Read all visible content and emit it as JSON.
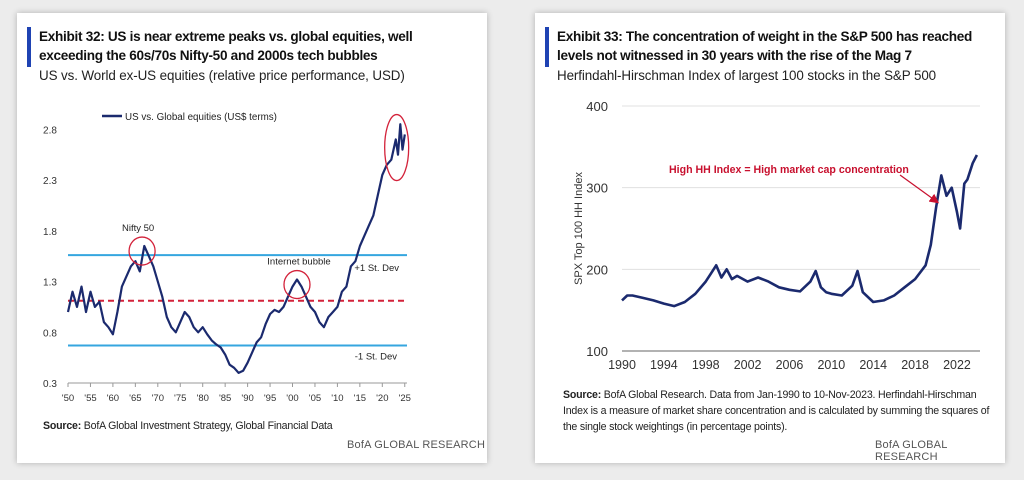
{
  "left": {
    "title": "Exhibit 32: US is near extreme peaks vs. global equities, well exceeding the 60s/70s Nifty-50 and 2000s tech bubbles",
    "subtitle": "US vs. World ex-US equities (relative price performance,  USD)",
    "source_label": "Source:",
    "source_text": "BofA Global Investment Strategy, Global Financial Data",
    "brand": "BofA GLOBAL RESEARCH"
  },
  "right": {
    "title": "Exhibit 33: The concentration of weight in the S&P 500 has reached levels not witnessed in 30 years with the rise of the Mag 7",
    "subtitle": "Herfindahl-Hirschman  Index of largest 100 stocks in the S&P 500",
    "source_label": "Source:",
    "source_text": "BofA Global Research. Data from Jan-1990 to 10-Nov-2023. Herfindahl-Hirschman Index is a measure of market share concentration and is calculated by summing the squares of the single stock weightings (in percentage points).",
    "brand": "BofA GLOBAL RESEARCH"
  },
  "chart_data": [
    {
      "type": "line",
      "title": "Exhibit 32",
      "legend": "US vs. Global equities (US$ terms)",
      "legend_position": "top-left",
      "x_tick_labels": [
        "'50",
        "'55",
        "'60",
        "'65",
        "'70",
        "'75",
        "'80",
        "'85",
        "'90",
        "'95",
        "'00",
        "'05",
        "'10",
        "'15",
        "'20",
        "'25"
      ],
      "x_ticks": [
        1950,
        1955,
        1960,
        1965,
        1970,
        1975,
        1980,
        1985,
        1990,
        1995,
        2000,
        2005,
        2010,
        2015,
        2020,
        2025
      ],
      "y_tick_labels": [
        "0.3",
        "0.8",
        "1.3",
        "1.8",
        "2.3",
        "2.8"
      ],
      "y_ticks": [
        0.3,
        0.8,
        1.3,
        1.8,
        2.3,
        2.8
      ],
      "xlim": [
        1950,
        2025.5
      ],
      "ylim": [
        0.3,
        3.0
      ],
      "reference_lines": [
        {
          "name": "+1 St. Dev",
          "value": 1.56,
          "style": "solid",
          "color": "#35a6df"
        },
        {
          "name": "mean",
          "value": 1.11,
          "style": "dashed",
          "color": "#d3223a"
        },
        {
          "name": "-1 St. Dev",
          "value": 0.67,
          "style": "solid",
          "color": "#35a6df"
        }
      ],
      "annotations": [
        {
          "text": "Nifty 50",
          "x": 1966.5,
          "y": 1.6
        },
        {
          "text": "Internet bubble",
          "x": 2001,
          "y": 1.27
        },
        {
          "text": "",
          "x": 2023.2,
          "y": 2.62
        }
      ],
      "series": [
        {
          "name": "US vs. Global equities (US$ terms)",
          "color": "#1b2a6e",
          "x": [
            1950,
            1951,
            1952,
            1953,
            1954,
            1955,
            1956,
            1957,
            1958,
            1959,
            1960,
            1961,
            1962,
            1963,
            1964,
            1965,
            1966,
            1967,
            1968,
            1969,
            1970,
            1971,
            1972,
            1973,
            1974,
            1975,
            1976,
            1977,
            1978,
            1979,
            1980,
            1981,
            1982,
            1983,
            1984,
            1985,
            1986,
            1987,
            1988,
            1989,
            1990,
            1991,
            1992,
            1993,
            1994,
            1995,
            1996,
            1997,
            1998,
            1999,
            2000,
            2001,
            2002,
            2003,
            2004,
            2005,
            2006,
            2007,
            2008,
            2009,
            2010,
            2011,
            2012,
            2013,
            2014,
            2015,
            2016,
            2017,
            2018,
            2019,
            2020,
            2021,
            2022,
            2023,
            2023.5,
            2024,
            2024.5,
            2025
          ],
          "values": [
            1.0,
            1.2,
            1.05,
            1.25,
            1.0,
            1.2,
            1.05,
            1.1,
            0.9,
            0.85,
            0.78,
            1.0,
            1.25,
            1.35,
            1.45,
            1.5,
            1.4,
            1.65,
            1.55,
            1.45,
            1.3,
            1.15,
            0.95,
            0.85,
            0.8,
            0.9,
            1.0,
            0.95,
            0.85,
            0.8,
            0.85,
            0.78,
            0.72,
            0.68,
            0.65,
            0.58,
            0.48,
            0.45,
            0.4,
            0.42,
            0.5,
            0.6,
            0.7,
            0.75,
            0.88,
            0.98,
            1.02,
            1.0,
            1.05,
            1.15,
            1.25,
            1.32,
            1.25,
            1.15,
            1.05,
            1.0,
            0.9,
            0.85,
            0.95,
            1.0,
            1.05,
            1.2,
            1.25,
            1.45,
            1.5,
            1.65,
            1.75,
            1.85,
            1.95,
            2.15,
            2.35,
            2.45,
            2.5,
            2.7,
            2.55,
            2.85,
            2.6,
            2.75
          ]
        }
      ]
    },
    {
      "type": "line",
      "title": "Exhibit 33",
      "ylabel": "SPX Top 100 HH Index",
      "x_tick_labels": [
        "1990",
        "1994",
        "1998",
        "2002",
        "2006",
        "2010",
        "2014",
        "2018",
        "2022"
      ],
      "x_ticks": [
        1990,
        1994,
        1998,
        2002,
        2006,
        2010,
        2014,
        2018,
        2022
      ],
      "y_tick_labels": [
        "100",
        "200",
        "300",
        "400"
      ],
      "y_ticks": [
        100,
        200,
        300,
        400
      ],
      "xlim": [
        1990,
        2024.2
      ],
      "ylim": [
        100,
        400
      ],
      "annotations": [
        {
          "text": "High HH Index = High market cap concentration",
          "x": 2020.3,
          "y": 285
        }
      ],
      "series": [
        {
          "name": "SPX Top 100 HH Index",
          "color": "#1b2a6e",
          "x": [
            1990,
            1990.5,
            1991,
            1992,
            1993,
            1994,
            1995,
            1996,
            1997,
            1998,
            1998.5,
            1999,
            1999.5,
            2000,
            2000.5,
            2001,
            2002,
            2003,
            2004,
            2005,
            2006,
            2007,
            2008,
            2008.5,
            2009,
            2009.5,
            2010,
            2011,
            2012,
            2012.5,
            2013,
            2014,
            2015,
            2016,
            2017,
            2018,
            2019,
            2019.5,
            2020,
            2020.5,
            2021,
            2021.5,
            2022,
            2022.3,
            2022.7,
            2023,
            2023.5,
            2023.9
          ],
          "values": [
            162,
            168,
            168,
            165,
            162,
            158,
            155,
            160,
            170,
            185,
            195,
            205,
            190,
            200,
            188,
            192,
            185,
            190,
            185,
            178,
            175,
            173,
            185,
            198,
            178,
            172,
            170,
            168,
            180,
            198,
            172,
            160,
            162,
            168,
            178,
            188,
            205,
            230,
            275,
            315,
            290,
            300,
            270,
            250,
            305,
            310,
            330,
            340
          ]
        }
      ]
    }
  ]
}
